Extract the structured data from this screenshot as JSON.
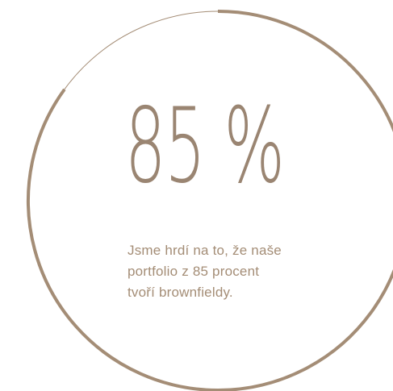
{
  "stat": {
    "value": "85 %",
    "progress_percent": 85
  },
  "caption": {
    "lines": [
      "Jsme hrdí na to, že naše",
      "portfolio z 85 procent",
      "tvoří brownfieldy."
    ]
  },
  "colors": {
    "accent": "#9a8572",
    "ring": "#a48d76",
    "text": "#a48d76",
    "background": "#ffffff"
  }
}
